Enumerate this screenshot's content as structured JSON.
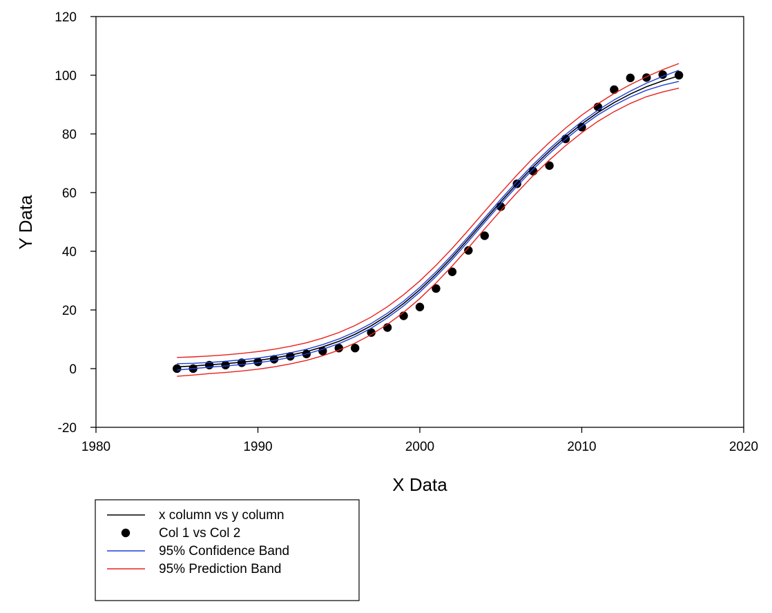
{
  "chart_data": {
    "type": "scatter",
    "title": "",
    "xlabel": "X Data",
    "ylabel": "Y Data",
    "xlim": [
      1980,
      2020
    ],
    "ylim": [
      -20,
      120
    ],
    "xticks": [
      1980,
      1990,
      2000,
      2010,
      2020
    ],
    "yticks": [
      -20,
      0,
      20,
      40,
      60,
      80,
      100,
      120
    ],
    "grid": false,
    "legend_position": "bottom-left",
    "series": [
      {
        "name": "x column vs y column",
        "kind": "line",
        "color": "#000000",
        "x": [
          1985,
          1986,
          1987,
          1988,
          1989,
          1990,
          1991,
          1992,
          1993,
          1994,
          1995,
          1996,
          1997,
          1998,
          1999,
          2000,
          2001,
          2002,
          2003,
          2004,
          2005,
          2006,
          2007,
          2008,
          2009,
          2010,
          2011,
          2012,
          2013,
          2014,
          2015,
          2016
        ],
        "y": [
          0.6,
          0.9,
          1.3,
          1.7,
          2.2,
          2.8,
          3.6,
          4.6,
          5.8,
          7.4,
          9.3,
          11.7,
          14.6,
          18.1,
          22.2,
          26.9,
          32.2,
          38.0,
          44.2,
          50.6,
          56.9,
          63.0,
          68.8,
          74.1,
          79.0,
          83.4,
          87.3,
          90.7,
          93.6,
          96.1,
          98.1,
          99.8
        ]
      },
      {
        "name": "Col 1 vs Col 2",
        "kind": "scatter",
        "color": "#000000",
        "x": [
          1985,
          1986,
          1987,
          1988,
          1989,
          1990,
          1991,
          1992,
          1993,
          1994,
          1995,
          1996,
          1997,
          1998,
          1999,
          2000,
          2001,
          2002,
          2003,
          2004,
          2005,
          2006,
          2007,
          2008,
          2009,
          2010,
          2011,
          2012,
          2013,
          2014,
          2015,
          2016
        ],
        "y": [
          0,
          0,
          1.2,
          1.2,
          2,
          2.3,
          3.2,
          4.2,
          5,
          6,
          7,
          7,
          12.3,
          14,
          18,
          21,
          27.3,
          33,
          40.3,
          45.3,
          55.2,
          63,
          67.3,
          69.2,
          78.3,
          82.3,
          89.2,
          95.1,
          99.1,
          99.2,
          100.2,
          100
        ]
      },
      {
        "name": "95% Confidence Band",
        "kind": "band",
        "color": "#1f3fd6",
        "x": [
          1985,
          1986,
          1987,
          1988,
          1989,
          1990,
          1991,
          1992,
          1993,
          1994,
          1995,
          1996,
          1997,
          1998,
          1999,
          2000,
          2001,
          2002,
          2003,
          2004,
          2005,
          2006,
          2007,
          2008,
          2009,
          2010,
          2011,
          2012,
          2013,
          2014,
          2015,
          2016
        ],
        "upper": [
          1.7,
          1.8,
          2.1,
          2.5,
          3.0,
          3.6,
          4.4,
          5.4,
          6.6,
          8.2,
          10.1,
          12.5,
          15.4,
          18.9,
          23.0,
          27.7,
          33.0,
          38.8,
          45.0,
          51.4,
          57.7,
          63.8,
          69.6,
          74.9,
          79.8,
          84.2,
          88.1,
          91.6,
          94.6,
          97.3,
          99.6,
          101.7
        ],
        "lower": [
          -0.5,
          0.0,
          0.5,
          0.9,
          1.4,
          2.0,
          2.8,
          3.8,
          5.0,
          6.6,
          8.5,
          10.9,
          13.8,
          17.3,
          21.4,
          26.1,
          31.4,
          37.2,
          43.4,
          49.8,
          56.1,
          62.2,
          68.0,
          73.3,
          78.2,
          82.6,
          86.5,
          89.8,
          92.6,
          94.9,
          96.6,
          97.9
        ]
      },
      {
        "name": "95% Prediction Band",
        "kind": "band",
        "color": "#e8201c",
        "x": [
          1985,
          1986,
          1987,
          1988,
          1989,
          1990,
          1991,
          1992,
          1993,
          1994,
          1995,
          1996,
          1997,
          1998,
          1999,
          2000,
          2001,
          2002,
          2003,
          2004,
          2005,
          2006,
          2007,
          2008,
          2009,
          2010,
          2011,
          2012,
          2013,
          2014,
          2015,
          2016
        ],
        "upper": [
          3.8,
          4.0,
          4.3,
          4.7,
          5.2,
          5.8,
          6.6,
          7.6,
          8.8,
          10.4,
          12.3,
          14.7,
          17.6,
          21.1,
          25.2,
          29.9,
          35.2,
          41.0,
          47.2,
          53.6,
          59.9,
          66.0,
          71.8,
          77.1,
          82.0,
          86.4,
          90.3,
          93.8,
          96.8,
          99.5,
          101.9,
          104.0
        ],
        "lower": [
          -2.6,
          -2.2,
          -1.7,
          -1.3,
          -0.8,
          -0.2,
          0.6,
          1.6,
          2.8,
          4.4,
          6.3,
          8.7,
          11.6,
          15.1,
          19.2,
          23.9,
          29.2,
          35.0,
          41.2,
          47.6,
          53.9,
          60.0,
          65.8,
          71.1,
          76.0,
          80.4,
          84.3,
          87.6,
          90.4,
          92.7,
          94.3,
          95.6
        ]
      }
    ]
  }
}
